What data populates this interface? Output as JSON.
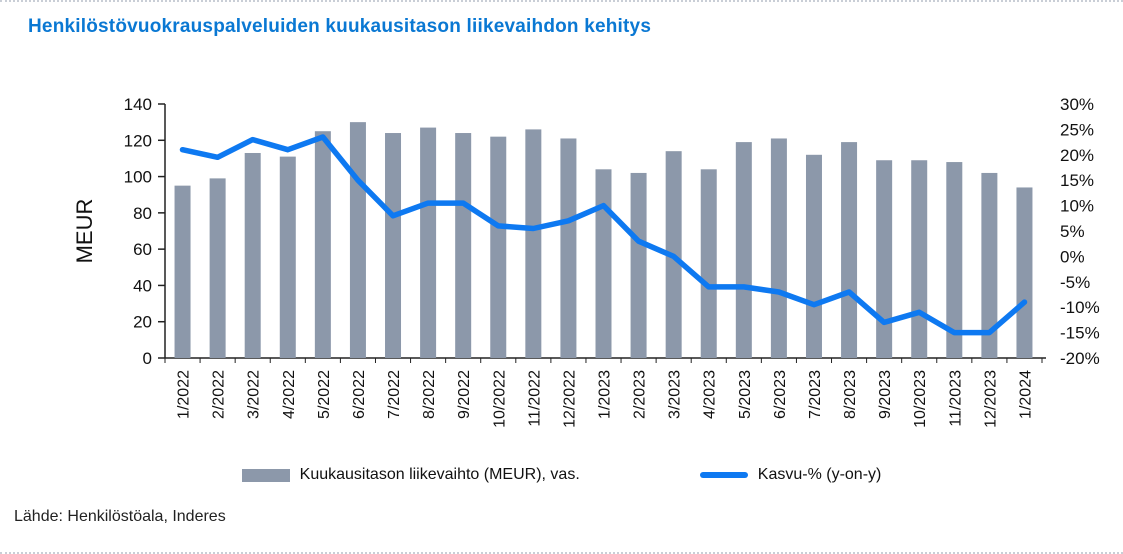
{
  "title": "Henkilöstövuokrauspalveluiden kuukausitason liikevaihdon kehitys",
  "source": "Lähde: Henkilöstöala, Inderes",
  "legend": {
    "bars": "Kuukausitason liikevaihto (MEUR), vas.",
    "line": "Kasvu-% (y-on-y)"
  },
  "colors": {
    "title": "#0a78d3",
    "bar": "#8c98aa",
    "line": "#0e79f1",
    "axis": "#222222",
    "text": "#111111"
  },
  "chart_data": {
    "type": "bar",
    "subtype": "bar+line combo",
    "categories": [
      "1/2022",
      "2/2022",
      "3/2022",
      "4/2022",
      "5/2022",
      "6/2022",
      "7/2022",
      "8/2022",
      "9/2022",
      "10/2022",
      "11/2022",
      "12/2022",
      "1/2023",
      "2/2023",
      "3/2023",
      "4/2023",
      "5/2023",
      "6/2023",
      "7/2023",
      "8/2023",
      "9/2023",
      "10/2023",
      "11/2023",
      "12/2023",
      "1/2024"
    ],
    "series": [
      {
        "name": "Kuukausitason liikevaihto (MEUR), vas.",
        "type": "bar",
        "axis": "left",
        "values": [
          95,
          99,
          113,
          111,
          125,
          130,
          124,
          127,
          124,
          122,
          126,
          121,
          104,
          102,
          114,
          104,
          119,
          121,
          112,
          119,
          109,
          109,
          108,
          102,
          94
        ]
      },
      {
        "name": "Kasvu-% (y-on-y)",
        "type": "line",
        "axis": "right",
        "values": [
          21,
          19.5,
          23,
          21,
          23.5,
          15,
          8,
          10.5,
          10.5,
          6,
          5.5,
          7,
          10,
          3,
          0,
          -6,
          -6,
          -7,
          -9.5,
          -7,
          -13,
          -11,
          -15,
          -15,
          -9
        ]
      }
    ],
    "left_axis": {
      "label": "MEUR",
      "min": 0,
      "max": 140,
      "step": 20
    },
    "right_axis": {
      "min": -20,
      "max": 30,
      "step": 5,
      "suffix": "%"
    },
    "grid": false,
    "legend_position": "bottom"
  }
}
